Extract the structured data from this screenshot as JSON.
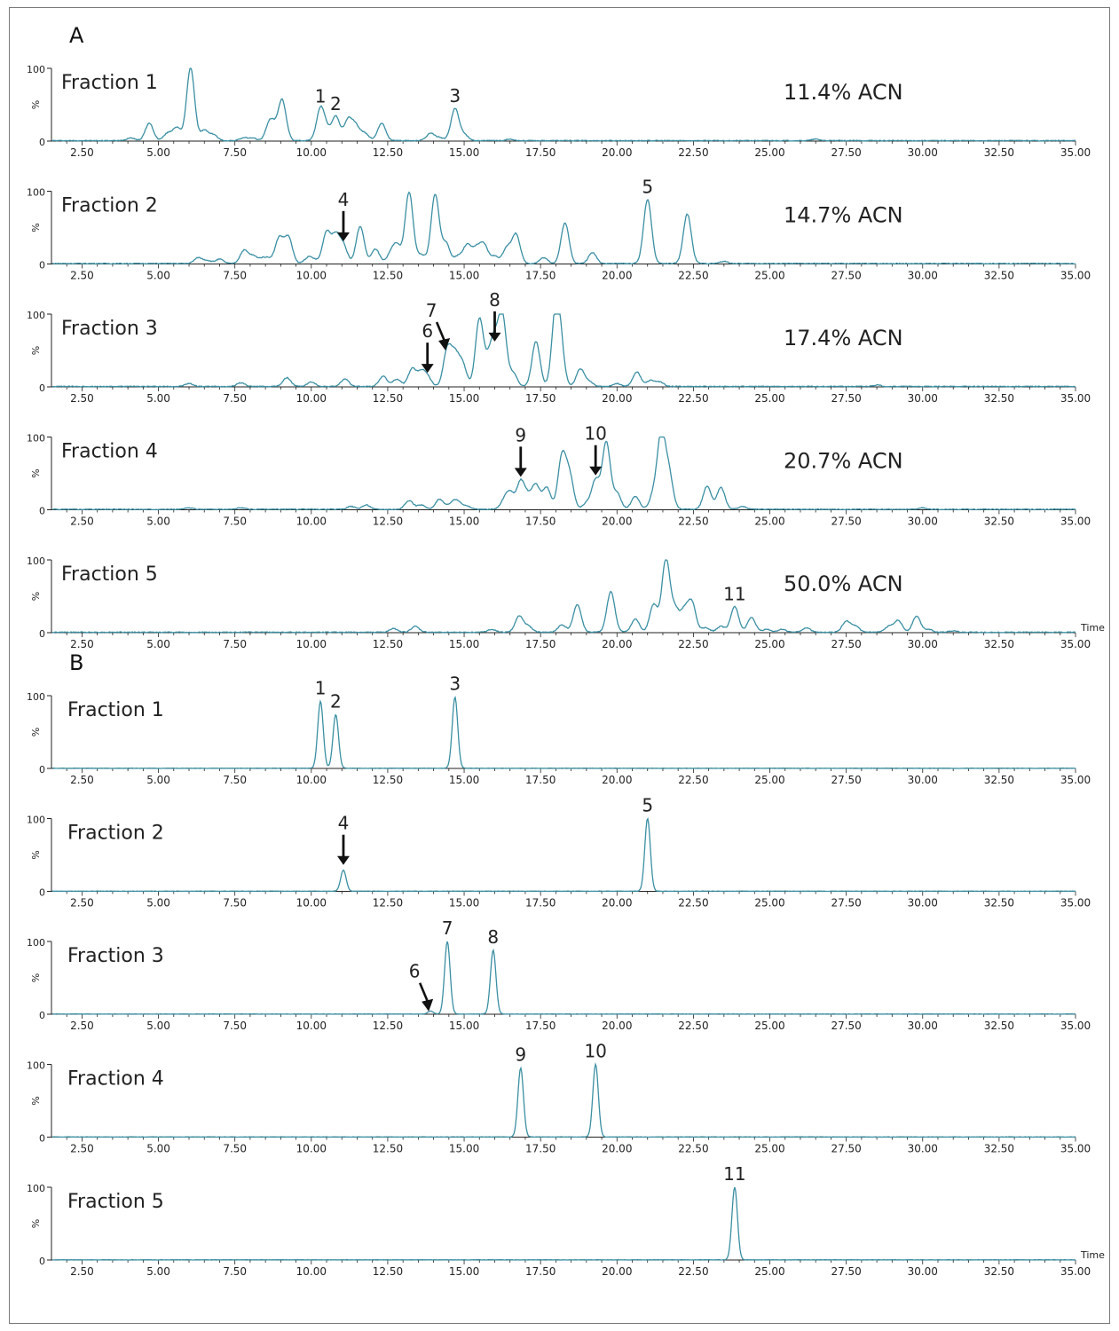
{
  "figure": {
    "panels": [
      {
        "label": "A",
        "fractions": [
          {
            "name": "Fraction 1",
            "acn": "11.4% ACN"
          },
          {
            "name": "Fraction 2",
            "acn": "14.7% ACN"
          },
          {
            "name": "Fraction 3",
            "acn": "17.4% ACN"
          },
          {
            "name": "Fraction 4",
            "acn": "20.7% ACN"
          },
          {
            "name": "Fraction 5",
            "acn": "50.0% ACN"
          }
        ]
      },
      {
        "label": "B",
        "fractions": [
          {
            "name": "Fraction 1"
          },
          {
            "name": "Fraction 2"
          },
          {
            "name": "Fraction 3"
          },
          {
            "name": "Fraction 4"
          },
          {
            "name": "Fraction 5"
          }
        ]
      }
    ]
  },
  "chart_data": {
    "type": "line",
    "x_label": "Time",
    "y_label": "%",
    "xlim": [
      1.5,
      35
    ],
    "ylim": [
      0,
      100
    ],
    "x_ticks": [
      "2.50",
      "5.00",
      "7.50",
      "10.00",
      "12.50",
      "15.00",
      "17.50",
      "20.00",
      "22.50",
      "25.00",
      "27.50",
      "30.00",
      "32.50",
      "35.00"
    ],
    "y_ticks": [
      "0",
      "100"
    ],
    "line_color": "#3a8fa3",
    "panels": [
      {
        "label": "A",
        "traces": [
          {
            "name": "Fraction 1",
            "acn": "11.4% ACN",
            "peaks": [
              [
                4.1,
                4
              ],
              [
                4.7,
                24
              ],
              [
                5.3,
                10
              ],
              [
                5.6,
                18
              ],
              [
                6.05,
                100
              ],
              [
                6.5,
                14
              ],
              [
                6.8,
                8
              ],
              [
                7.8,
                4
              ],
              [
                8.1,
                3
              ],
              [
                8.65,
                27
              ],
              [
                8.85,
                8
              ],
              [
                9.05,
                54
              ],
              [
                10.3,
                43
              ],
              [
                10.5,
                12
              ],
              [
                10.8,
                33
              ],
              [
                11.2,
                28
              ],
              [
                11.45,
                20
              ],
              [
                11.75,
                10
              ],
              [
                12.3,
                24
              ],
              [
                13.9,
                10
              ],
              [
                14.2,
                4
              ],
              [
                14.7,
                44
              ],
              [
                15.0,
                8
              ],
              [
                16.5,
                2
              ],
              [
                26.5,
                2
              ]
            ],
            "labels": [
              {
                "text": "1",
                "x": 10.3,
                "y": 43
              },
              {
                "text": "2",
                "x": 10.8,
                "y": 33
              },
              {
                "text": "3",
                "x": 14.7,
                "y": 44
              }
            ]
          },
          {
            "name": "Fraction 2",
            "acn": "14.7% ACN",
            "peaks": [
              [
                6.3,
                8
              ],
              [
                6.6,
                4
              ],
              [
                7.0,
                6
              ],
              [
                7.8,
                18
              ],
              [
                8.1,
                10
              ],
              [
                8.4,
                6
              ],
              [
                8.6,
                6
              ],
              [
                8.95,
                35
              ],
              [
                9.25,
                36
              ],
              [
                9.9,
                8
              ],
              [
                10.1,
                4
              ],
              [
                10.5,
                43
              ],
              [
                10.8,
                37
              ],
              [
                11.05,
                24
              ],
              [
                11.6,
                51
              ],
              [
                12.1,
                20
              ],
              [
                12.6,
                12
              ],
              [
                12.8,
                24
              ],
              [
                13.2,
                98
              ],
              [
                13.6,
                12
              ],
              [
                14.05,
                95
              ],
              [
                14.4,
                28
              ],
              [
                14.8,
                10
              ],
              [
                15.1,
                25
              ],
              [
                15.4,
                20
              ],
              [
                15.65,
                25
              ],
              [
                16.0,
                10
              ],
              [
                16.4,
                22
              ],
              [
                16.7,
                40
              ],
              [
                17.6,
                8
              ],
              [
                18.3,
                56
              ],
              [
                19.2,
                15
              ],
              [
                21.0,
                88
              ],
              [
                22.3,
                68
              ],
              [
                23.5,
                3
              ]
            ],
            "labels": [
              {
                "text": "4",
                "x": 11.05,
                "y": 24,
                "arrow": true
              },
              {
                "text": "5",
                "x": 21.0,
                "y": 88
              }
            ]
          },
          {
            "name": "Fraction 3",
            "acn": "17.4% ACN",
            "peaks": [
              [
                6.0,
                4
              ],
              [
                7.7,
                5
              ],
              [
                9.2,
                12
              ],
              [
                10.0,
                6
              ],
              [
                11.1,
                10
              ],
              [
                12.35,
                14
              ],
              [
                12.8,
                10
              ],
              [
                13.3,
                24
              ],
              [
                13.6,
                18
              ],
              [
                13.8,
                12
              ],
              [
                14.45,
                50
              ],
              [
                14.7,
                40
              ],
              [
                14.95,
                30
              ],
              [
                15.5,
                92
              ],
              [
                15.8,
                30
              ],
              [
                16.0,
                55
              ],
              [
                16.25,
                95
              ],
              [
                16.6,
                18
              ],
              [
                17.35,
                62
              ],
              [
                18.0,
                100
              ],
              [
                18.15,
                45
              ],
              [
                18.8,
                24
              ],
              [
                19.1,
                6
              ],
              [
                20.0,
                4
              ],
              [
                20.65,
                20
              ],
              [
                21.1,
                8
              ],
              [
                21.4,
                6
              ],
              [
                28.5,
                2
              ]
            ],
            "labels": [
              {
                "text": "6",
                "x": 13.8,
                "y": 12,
                "arrow": true
              },
              {
                "text": "7",
                "x": 14.45,
                "y": 50,
                "arrow": true,
                "slant": true
              },
              {
                "text": "8",
                "x": 16.0,
                "y": 55,
                "arrow": true
              }
            ]
          },
          {
            "name": "Fraction 4",
            "acn": "20.7% ACN",
            "peaks": [
              [
                6.0,
                2
              ],
              [
                7.7,
                2
              ],
              [
                11.3,
                4
              ],
              [
                11.8,
                6
              ],
              [
                13.2,
                12
              ],
              [
                13.6,
                6
              ],
              [
                14.2,
                14
              ],
              [
                14.6,
                8
              ],
              [
                14.8,
                10
              ],
              [
                15.1,
                4
              ],
              [
                16.3,
                10
              ],
              [
                16.5,
                22
              ],
              [
                16.85,
                38
              ],
              [
                17.1,
                15
              ],
              [
                17.35,
                32
              ],
              [
                17.7,
                30
              ],
              [
                18.2,
                72
              ],
              [
                18.45,
                45
              ],
              [
                19.0,
                8
              ],
              [
                19.3,
                40
              ],
              [
                19.65,
                92
              ],
              [
                20.0,
                22
              ],
              [
                20.6,
                18
              ],
              [
                21.2,
                20
              ],
              [
                21.45,
                100
              ],
              [
                21.7,
                48
              ],
              [
                22.95,
                32
              ],
              [
                23.4,
                30
              ],
              [
                24.1,
                4
              ],
              [
                30.0,
                2
              ]
            ],
            "labels": [
              {
                "text": "9",
                "x": 16.85,
                "y": 38,
                "arrow": true
              },
              {
                "text": "10",
                "x": 19.3,
                "y": 40,
                "arrow": true
              }
            ]
          },
          {
            "name": "Fraction 5",
            "acn": "50.0% ACN",
            "peaks": [
              [
                12.7,
                5
              ],
              [
                13.4,
                8
              ],
              [
                15.9,
                4
              ],
              [
                16.8,
                22
              ],
              [
                17.1,
                8
              ],
              [
                18.2,
                10
              ],
              [
                18.7,
                38
              ],
              [
                19.8,
                56
              ],
              [
                20.6,
                18
              ],
              [
                21.2,
                38
              ],
              [
                21.6,
                100
              ],
              [
                21.9,
                30
              ],
              [
                22.2,
                28
              ],
              [
                22.45,
                40
              ],
              [
                22.9,
                6
              ],
              [
                23.4,
                8
              ],
              [
                23.85,
                35
              ],
              [
                24.4,
                20
              ],
              [
                24.9,
                4
              ],
              [
                25.4,
                4
              ],
              [
                26.2,
                6
              ],
              [
                27.5,
                15
              ],
              [
                27.8,
                8
              ],
              [
                28.9,
                8
              ],
              [
                29.2,
                16
              ],
              [
                29.8,
                22
              ],
              [
                30.2,
                4
              ],
              [
                31.0,
                2
              ]
            ],
            "labels": [
              {
                "text": "11",
                "x": 23.85,
                "y": 35
              }
            ]
          }
        ]
      },
      {
        "label": "B",
        "traces": [
          {
            "name": "Fraction 1",
            "peaks": [
              [
                10.3,
                92
              ],
              [
                10.8,
                74
              ],
              [
                14.7,
                98
              ]
            ],
            "labels": [
              {
                "text": "1",
                "x": 10.3,
                "y": 92
              },
              {
                "text": "2",
                "x": 10.8,
                "y": 74
              },
              {
                "text": "3",
                "x": 14.7,
                "y": 98
              }
            ]
          },
          {
            "name": "Fraction 2",
            "peaks": [
              [
                11.05,
                29
              ],
              [
                21.0,
                100
              ]
            ],
            "labels": [
              {
                "text": "4",
                "x": 11.05,
                "y": 29,
                "arrow": true
              },
              {
                "text": "5",
                "x": 21.0,
                "y": 100
              }
            ]
          },
          {
            "name": "Fraction 3",
            "peaks": [
              [
                13.9,
                4
              ],
              [
                14.45,
                100
              ],
              [
                15.95,
                88
              ]
            ],
            "labels": [
              {
                "text": "6",
                "x": 13.9,
                "y": 4,
                "arrow": true,
                "slant": true
              },
              {
                "text": "7",
                "x": 14.45,
                "y": 100
              },
              {
                "text": "8",
                "x": 15.95,
                "y": 88
              }
            ]
          },
          {
            "name": "Fraction 4",
            "peaks": [
              [
                16.85,
                95
              ],
              [
                19.3,
                100
              ]
            ],
            "labels": [
              {
                "text": "9",
                "x": 16.85,
                "y": 95
              },
              {
                "text": "10",
                "x": 19.3,
                "y": 100
              }
            ]
          },
          {
            "name": "Fraction 5",
            "peaks": [
              [
                23.85,
                100
              ]
            ],
            "labels": [
              {
                "text": "11",
                "x": 23.85,
                "y": 100
              }
            ]
          }
        ]
      }
    ]
  }
}
